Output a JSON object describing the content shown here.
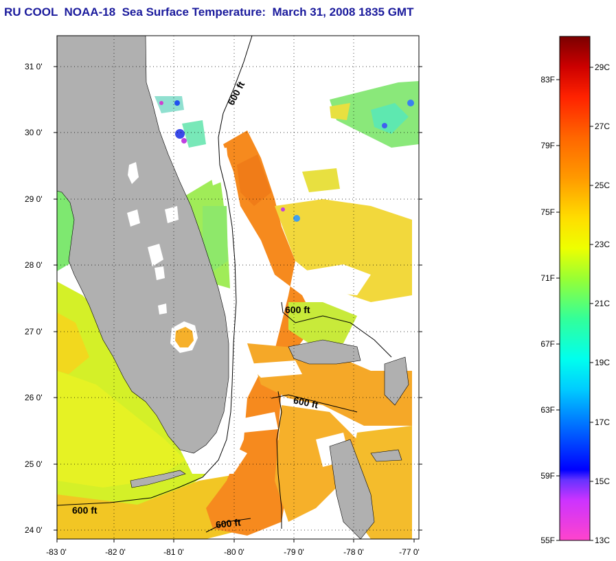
{
  "title": "RU COOL  NOAA-18  Sea Surface Temperature:  March 31, 2008 1835 GMT",
  "map": {
    "lat_labels": [
      "31 0'",
      "30 0'",
      "29 0'",
      "28 0'",
      "27 0'",
      "26 0'",
      "25 0'",
      "24 0'"
    ],
    "lon_labels": [
      "-83 0'",
      "-82 0'",
      "-81 0'",
      "-80 0'",
      "-79 0'",
      "-78 0'",
      "-77 0'"
    ],
    "contour_labels": [
      "600 ft",
      "600 ft",
      "600 ft",
      "600 ft",
      "600 ft"
    ],
    "land_color": "#b0b0b0",
    "nodata_color": "#ffffff"
  },
  "colorbar": {
    "f_labels": [
      "83F",
      "79F",
      "75F",
      "71F",
      "67F",
      "63F",
      "59F",
      "55F"
    ],
    "c_labels": [
      "29C",
      "27C",
      "25C",
      "23C",
      "21C",
      "19C",
      "17C",
      "15C",
      "13C"
    ]
  }
}
